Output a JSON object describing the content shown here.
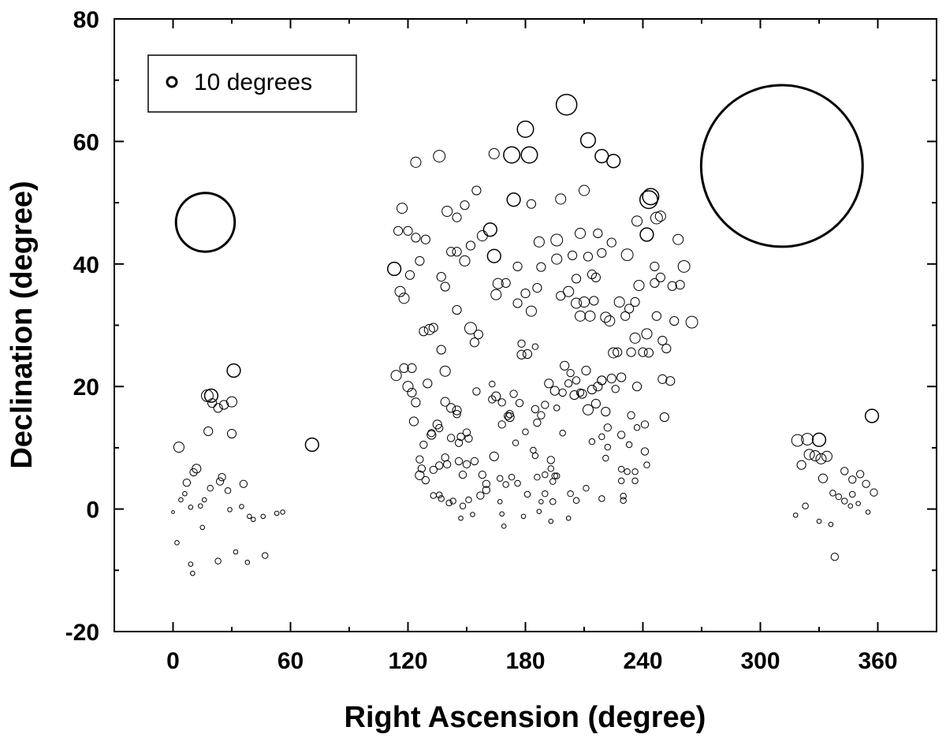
{
  "chart_data": {
    "type": "scatter",
    "title": "",
    "xlabel": "Right Ascension (degree)",
    "ylabel": "Declination (degree)",
    "xlim": [
      -30,
      390
    ],
    "ylim": [
      -20,
      80
    ],
    "xticks": [
      0,
      60,
      120,
      180,
      240,
      300,
      360
    ],
    "yticks": [
      -20,
      0,
      20,
      40,
      60,
      80
    ],
    "grid": false,
    "legend": {
      "position": "top-left",
      "label": "10 degrees",
      "size": 10
    },
    "marker_color": "#000000",
    "points": [
      [
        16.5,
        46.8,
        40
      ],
      [
        311,
        56.0,
        110
      ],
      [
        201,
        66.0,
        14
      ],
      [
        180,
        62.0,
        11
      ],
      [
        173,
        57.8,
        11
      ],
      [
        182,
        57.8,
        11
      ],
      [
        212,
        60.2,
        10
      ],
      [
        219,
        57.6,
        9
      ],
      [
        225,
        56.8,
        9
      ],
      [
        136,
        57.6,
        8
      ],
      [
        124,
        56.6,
        7
      ],
      [
        164,
        58.0,
        7
      ],
      [
        243,
        50.5,
        12
      ],
      [
        244,
        51.0,
        11
      ],
      [
        174,
        50.5,
        9
      ],
      [
        162,
        45.6,
        9
      ],
      [
        164,
        41.3,
        9
      ],
      [
        113,
        39.2,
        9
      ],
      [
        247,
        47.5,
        8
      ],
      [
        242,
        44.8,
        9
      ],
      [
        249,
        47.8,
        7
      ],
      [
        232,
        41.5,
        8
      ],
      [
        196,
        43.9,
        8
      ],
      [
        202,
        35.5,
        7
      ],
      [
        206,
        33.6,
        7
      ],
      [
        210,
        33.8,
        7
      ],
      [
        213,
        31.5,
        7
      ],
      [
        225,
        25.5,
        7
      ],
      [
        211,
        22.6,
        6
      ],
      [
        208,
        45.0,
        7
      ],
      [
        261,
        39.6,
        8
      ],
      [
        265,
        30.5,
        8
      ],
      [
        116,
        35.5,
        7
      ],
      [
        118,
        34.4,
        7
      ],
      [
        121,
        38.2,
        6
      ],
      [
        117,
        49.1,
        7
      ],
      [
        115,
        45.4,
        6
      ],
      [
        120,
        45.4,
        6
      ],
      [
        124,
        44.3,
        6
      ],
      [
        129,
        44.0,
        6
      ],
      [
        126,
        40.5,
        6
      ],
      [
        140,
        48.6,
        7
      ],
      [
        145,
        47.6,
        6
      ],
      [
        149,
        49.6,
        6
      ],
      [
        155,
        52.0,
        6
      ],
      [
        187,
        43.6,
        7
      ],
      [
        183,
        49.8,
        6
      ],
      [
        198,
        50.6,
        7
      ],
      [
        210,
        52.0,
        7
      ],
      [
        217,
        45.0,
        6
      ],
      [
        219,
        41.8,
        6
      ],
      [
        224,
        43.5,
        6
      ],
      [
        212,
        41.2,
        6
      ],
      [
        204,
        41.4,
        6
      ],
      [
        196,
        40.8,
        7
      ],
      [
        188,
        39.5,
        6
      ],
      [
        176,
        39.6,
        6
      ],
      [
        166,
        36.8,
        7
      ],
      [
        165,
        35.0,
        7
      ],
      [
        170,
        36.9,
        6
      ],
      [
        176,
        33.6,
        6
      ],
      [
        180,
        35.2,
        6
      ],
      [
        186,
        36.1,
        6
      ],
      [
        183,
        32.3,
        7
      ],
      [
        198,
        34.8,
        6
      ],
      [
        206,
        37.6,
        6
      ],
      [
        214,
        38.3,
        6
      ],
      [
        216,
        37.8,
        6
      ],
      [
        215,
        34.0,
        6
      ],
      [
        208,
        31.5,
        7
      ],
      [
        221,
        31.3,
        7
      ],
      [
        223,
        30.7,
        7
      ],
      [
        228,
        33.8,
        7
      ],
      [
        231,
        31.5,
        6
      ],
      [
        233,
        32.7,
        6
      ],
      [
        236,
        33.8,
        6
      ],
      [
        238,
        36.5,
        7
      ],
      [
        237,
        47.0,
        7
      ],
      [
        246,
        39.6,
        6
      ],
      [
        246,
        36.9,
        6
      ],
      [
        249,
        37.8,
        6
      ],
      [
        255,
        36.4,
        6
      ],
      [
        259,
        36.6,
        6
      ],
      [
        258,
        44.0,
        7
      ],
      [
        247,
        31.5,
        6
      ],
      [
        256,
        30.7,
        6
      ],
      [
        242,
        28.6,
        7
      ],
      [
        236,
        27.9,
        7
      ],
      [
        243,
        25.5,
        6
      ],
      [
        240,
        25.6,
        6
      ],
      [
        234,
        25.6,
        6
      ],
      [
        227,
        25.6,
        6
      ],
      [
        229,
        21.5,
        6
      ],
      [
        224,
        21.3,
        6
      ],
      [
        219,
        21.0,
        6
      ],
      [
        237,
        20.0,
        6
      ],
      [
        250,
        27.5,
        6
      ],
      [
        252,
        26.2,
        6
      ],
      [
        250,
        21.2,
        6
      ],
      [
        254,
        20.9,
        6
      ],
      [
        251,
        15.0,
        6
      ],
      [
        152,
        29.5,
        8
      ],
      [
        154,
        27.2,
        6
      ],
      [
        156,
        28.5,
        6
      ],
      [
        137,
        26.0,
        6
      ],
      [
        131,
        29.3,
        7
      ],
      [
        133,
        29.6,
        6
      ],
      [
        128,
        29.0,
        6
      ],
      [
        145,
        32.5,
        6
      ],
      [
        149,
        40.5,
        7
      ],
      [
        145,
        42.0,
        6
      ],
      [
        142,
        42.0,
        6
      ],
      [
        152,
        43.0,
        6
      ],
      [
        158,
        44.6,
        7
      ],
      [
        139,
        36.3,
        6
      ],
      [
        137,
        37.9,
        6
      ],
      [
        114,
        21.8,
        7
      ],
      [
        118,
        23.0,
        6
      ],
      [
        122,
        23.0,
        6
      ],
      [
        120,
        20.0,
        7
      ],
      [
        122,
        19.0,
        6
      ],
      [
        124,
        17.4,
        6
      ],
      [
        130,
        20.5,
        6
      ],
      [
        139,
        22.5,
        7
      ],
      [
        142,
        16.5,
        6
      ],
      [
        145,
        16.1,
        6
      ],
      [
        139,
        17.5,
        6
      ],
      [
        135,
        13.8,
        6
      ],
      [
        132,
        12.1,
        6
      ],
      [
        126,
        8.1,
        5
      ],
      [
        127,
        6.6,
        5
      ],
      [
        129,
        4.7,
        5
      ],
      [
        132,
        12.4,
        5
      ],
      [
        136,
        13.2,
        5
      ],
      [
        123,
        14.3,
        6
      ],
      [
        128,
        10.5,
        5
      ],
      [
        126,
        5.5,
        6
      ],
      [
        133,
        6.4,
        5
      ],
      [
        136,
        7.1,
        5
      ],
      [
        139,
        8.4,
        5
      ],
      [
        142,
        11.6,
        5
      ],
      [
        146,
        10.8,
        5
      ],
      [
        147,
        11.8,
        5
      ],
      [
        150,
        12.5,
        5
      ],
      [
        151,
        11.5,
        5
      ],
      [
        145,
        15.5,
        5
      ],
      [
        140,
        7.3,
        5
      ],
      [
        146,
        7.8,
        5
      ],
      [
        148,
        5.6,
        5
      ],
      [
        150,
        7.3,
        5
      ],
      [
        154,
        7.8,
        5
      ],
      [
        158,
        5.6,
        5
      ],
      [
        164,
        8.6,
        6
      ],
      [
        160,
        4.1,
        5
      ],
      [
        160,
        3.1,
        5
      ],
      [
        157,
        2.2,
        5
      ],
      [
        151,
        1.5,
        4
      ],
      [
        148,
        0.5,
        4
      ],
      [
        147,
        -1.5,
        3
      ],
      [
        153,
        -0.9,
        3
      ],
      [
        143,
        1.3,
        4
      ],
      [
        141,
        1.0,
        4
      ],
      [
        137,
        1.7,
        4
      ],
      [
        136,
        2.3,
        4
      ],
      [
        133,
        2.2,
        4
      ],
      [
        155,
        19.2,
        5
      ],
      [
        163,
        20.4,
        4
      ],
      [
        165,
        18.4,
        6
      ],
      [
        168,
        17.4,
        5
      ],
      [
        172,
        15.0,
        6
      ],
      [
        172,
        15.5,
        5
      ],
      [
        174,
        18.8,
        5
      ],
      [
        177,
        17.3,
        5
      ],
      [
        168,
        13.8,
        5
      ],
      [
        163,
        17.9,
        5
      ],
      [
        175,
        10.8,
        4
      ],
      [
        180,
        12.6,
        4
      ],
      [
        178,
        25.2,
        6
      ],
      [
        181,
        25.3,
        6
      ],
      [
        178,
        27.0,
        5
      ],
      [
        185,
        26.5,
        4
      ],
      [
        184,
        9.6,
        4
      ],
      [
        185,
        8.7,
        4
      ],
      [
        192,
        20.5,
        6
      ],
      [
        195,
        19.3,
        6
      ],
      [
        199,
        19.0,
        5
      ],
      [
        200,
        23.4,
        6
      ],
      [
        202,
        20.5,
        5
      ],
      [
        203,
        22.2,
        5
      ],
      [
        206,
        21.0,
        5
      ],
      [
        208,
        19.0,
        5
      ],
      [
        205,
        18.6,
        6
      ],
      [
        209,
        18.8,
        6
      ],
      [
        212,
        16.2,
        7
      ],
      [
        214,
        19.5,
        6
      ],
      [
        216,
        17.2,
        6
      ],
      [
        217,
        20.0,
        6
      ],
      [
        219,
        21.0,
        6
      ],
      [
        221,
        15.9,
        6
      ],
      [
        222,
        13.3,
        5
      ],
      [
        222,
        10.1,
        4
      ],
      [
        219,
        11.8,
        4
      ],
      [
        214,
        11.0,
        4
      ],
      [
        226,
        19.6,
        5
      ],
      [
        229,
        12.1,
        5
      ],
      [
        233,
        10.5,
        4
      ],
      [
        234,
        15.3,
        5
      ],
      [
        237,
        13.3,
        4
      ],
      [
        241,
        13.8,
        5
      ],
      [
        241,
        9.4,
        5
      ],
      [
        242,
        7.2,
        4
      ],
      [
        236,
        6.1,
        4
      ],
      [
        236,
        4.6,
        4
      ],
      [
        232,
        6.1,
        4
      ],
      [
        229,
        6.5,
        4
      ],
      [
        229,
        4.6,
        4
      ],
      [
        230,
        2.1,
        4
      ],
      [
        230,
        1.4,
        4
      ],
      [
        221,
        8.3,
        4
      ],
      [
        219,
        1.7,
        4
      ],
      [
        211,
        3.4,
        4
      ],
      [
        206,
        1.4,
        4
      ],
      [
        203,
        2.5,
        4
      ],
      [
        202,
        -1.5,
        3
      ],
      [
        193,
        -2.0,
        3
      ],
      [
        187,
        -0.4,
        3
      ],
      [
        188,
        1.2,
        3
      ],
      [
        190,
        2.5,
        4
      ],
      [
        194,
        4.5,
        4
      ],
      [
        196,
        5.4,
        4
      ],
      [
        193,
        6.6,
        4
      ],
      [
        193,
        8.0,
        5
      ],
      [
        190,
        5.6,
        4
      ],
      [
        186,
        5.2,
        4
      ],
      [
        181,
        2.4,
        4
      ],
      [
        179,
        -1.2,
        3
      ],
      [
        176,
        4.2,
        4
      ],
      [
        173,
        5.2,
        4
      ],
      [
        168,
        -0.8,
        3
      ],
      [
        169,
        -2.8,
        3
      ],
      [
        167,
        1.2,
        3
      ],
      [
        170,
        4.0,
        4
      ],
      [
        186,
        14.1,
        5
      ],
      [
        188,
        15.3,
        5
      ],
      [
        190,
        17.0,
        5
      ],
      [
        196,
        16.5,
        4
      ],
      [
        199,
        12.4,
        4
      ],
      [
        185,
        16.3,
        5
      ],
      [
        195,
        5.4,
        4
      ],
      [
        194,
        1.2,
        4
      ],
      [
        171,
        15.2,
        5
      ],
      [
        167,
        5.0,
        4
      ],
      [
        17.5,
        18.5,
        8
      ],
      [
        19.5,
        18.5,
        9
      ],
      [
        23,
        16.5,
        6
      ],
      [
        20,
        17.3,
        6
      ],
      [
        26,
        17.0,
        6
      ],
      [
        30,
        17.5,
        7
      ],
      [
        31,
        22.6,
        9
      ],
      [
        18,
        12.7,
        6
      ],
      [
        30,
        12.3,
        6
      ],
      [
        3,
        10.1,
        7
      ],
      [
        71,
        10.5,
        9
      ],
      [
        10.5,
        6.0,
        5
      ],
      [
        12,
        6.6,
        6
      ],
      [
        7,
        4.3,
        5
      ],
      [
        24,
        4.5,
        5
      ],
      [
        25,
        5.2,
        5
      ],
      [
        28,
        3.0,
        4
      ],
      [
        36,
        4.1,
        5
      ],
      [
        19,
        3.4,
        4
      ],
      [
        35,
        0.4,
        3
      ],
      [
        29,
        -0.1,
        3
      ],
      [
        39,
        -1.2,
        3
      ],
      [
        41,
        -1.7,
        3
      ],
      [
        46,
        -1.2,
        3
      ],
      [
        53,
        -0.7,
        3
      ],
      [
        56,
        -0.5,
        3
      ],
      [
        14,
        0.5,
        3
      ],
      [
        16,
        1.5,
        3
      ],
      [
        4,
        1.5,
        3
      ],
      [
        6,
        2.5,
        3
      ],
      [
        9,
        0.3,
        3
      ],
      [
        15,
        -3.0,
        3
      ],
      [
        32,
        -7.0,
        3
      ],
      [
        38,
        -8.7,
        3
      ],
      [
        47,
        -7.6,
        4
      ],
      [
        23,
        -8.5,
        4
      ],
      [
        9,
        -9.0,
        3
      ],
      [
        10,
        -10.5,
        3
      ],
      [
        2,
        -5.5,
        3
      ],
      [
        0,
        -0.5,
        2
      ],
      [
        357,
        15.2,
        9
      ],
      [
        324,
        11.4,
        8
      ],
      [
        319,
        11.2,
        8
      ],
      [
        330,
        11.3,
        9
      ],
      [
        325,
        8.9,
        7
      ],
      [
        328,
        8.7,
        7
      ],
      [
        331,
        8.2,
        7
      ],
      [
        334,
        8.6,
        7
      ],
      [
        332,
        5.0,
        6
      ],
      [
        321,
        7.2,
        6
      ],
      [
        343,
        6.2,
        5
      ],
      [
        347,
        4.8,
        5
      ],
      [
        351,
        5.7,
        5
      ],
      [
        354,
        4.1,
        5
      ],
      [
        358,
        2.7,
        5
      ],
      [
        343,
        1.3,
        4
      ],
      [
        347,
        2.4,
        4
      ],
      [
        340,
        2.0,
        4
      ],
      [
        337,
        2.6,
        4
      ],
      [
        355,
        -0.5,
        3
      ],
      [
        350,
        0.9,
        3
      ],
      [
        346,
        0.5,
        3
      ],
      [
        336,
        -2.5,
        3
      ],
      [
        330,
        -2.0,
        3
      ],
      [
        323,
        0.5,
        4
      ],
      [
        318,
        -1.0,
        3
      ],
      [
        338,
        -7.8,
        5
      ]
    ]
  }
}
